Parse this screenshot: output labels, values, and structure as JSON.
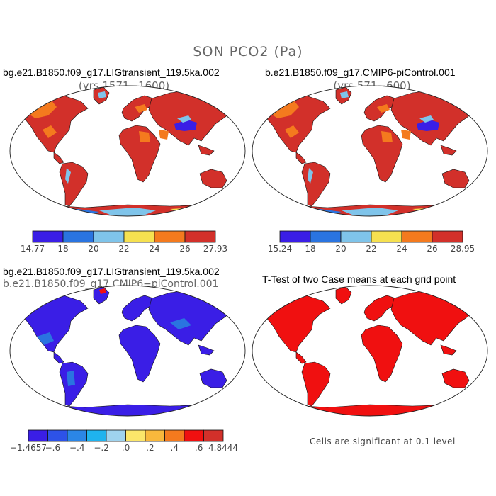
{
  "title": "SON PCO2 (Pa)",
  "panels": [
    {
      "case_line1": "bg.e21.B1850.f09_g17.LIGtransient_119.5ka.002",
      "subtitle": "(yrs 1571−1600)"
    },
    {
      "case_line1": "b.e21.B1850.f09_g17.CMIP6-piControl.001",
      "subtitle": "(yrs 571−600)"
    },
    {
      "case_line1": "bg.e21.B1850.f09_g17.LIGtransient_119.5ka.002",
      "case_line2": "b.e21.B1850.f09_g17.CMIP6−piControl.001"
    },
    {
      "case_line1": "T-Test of two Case means at each grid point",
      "footnote": "Cells are significant at 0.1 level"
    }
  ],
  "colors": {
    "ocean": "#ffffff",
    "abs_scale": [
      "#3a1ee6",
      "#2a74e0",
      "#7fc4ea",
      "#f6e150",
      "#f47a1e",
      "#d2302a"
    ],
    "abs_land": "#d2302a",
    "abs_cold": "#2a74e0",
    "abs_cool": "#7fc4ea",
    "abs_warm": "#f47a1e",
    "abs_yellow": "#f6e150",
    "abs_deep": "#3a1ee6",
    "diff_scale": [
      "#3a1ee6",
      "#2d52e8",
      "#2b86e6",
      "#1fb3ee",
      "#9fd3ee",
      "#fbe66a",
      "#f8b83c",
      "#f47a1e",
      "#f01010",
      "#d2302a"
    ],
    "diff_land": "#3a1ee6",
    "ttest_land": "#f01010"
  },
  "chart_data": [
    {
      "type": "heatmap",
      "title": "bg.e21.B1850.f09_g17.LIGtransient_119.5ka.002",
      "subtitle": "(yrs 1571−1600)",
      "colorbar_ticks": [
        "14.77",
        "18",
        "20",
        "22",
        "24",
        "26",
        "27.93"
      ],
      "range": [
        14.77,
        27.93
      ]
    },
    {
      "type": "heatmap",
      "title": "b.e21.B1850.f09_g17.CMIP6-piControl.001",
      "subtitle": "(yrs 571−600)",
      "colorbar_ticks": [
        "15.24",
        "18",
        "20",
        "22",
        "24",
        "26",
        "28.95"
      ],
      "range": [
        15.24,
        28.95
      ]
    },
    {
      "type": "heatmap",
      "title": "bg.e21.B1850.f09_g17.LIGtransient_119.5ka.002 − b.e21.B1850.f09_g17.CMIP6−piControl.001",
      "colorbar_ticks": [
        "−1.4657",
        "−.6",
        "−.4",
        "−.2",
        ".0",
        ".2",
        ".4",
        ".6",
        "4.8444"
      ],
      "range": [
        -1.4657,
        4.8444
      ]
    },
    {
      "type": "heatmap",
      "title": "T-Test of two Case means at each grid point",
      "annotation": "Cells are significant at 0.1 level"
    }
  ]
}
